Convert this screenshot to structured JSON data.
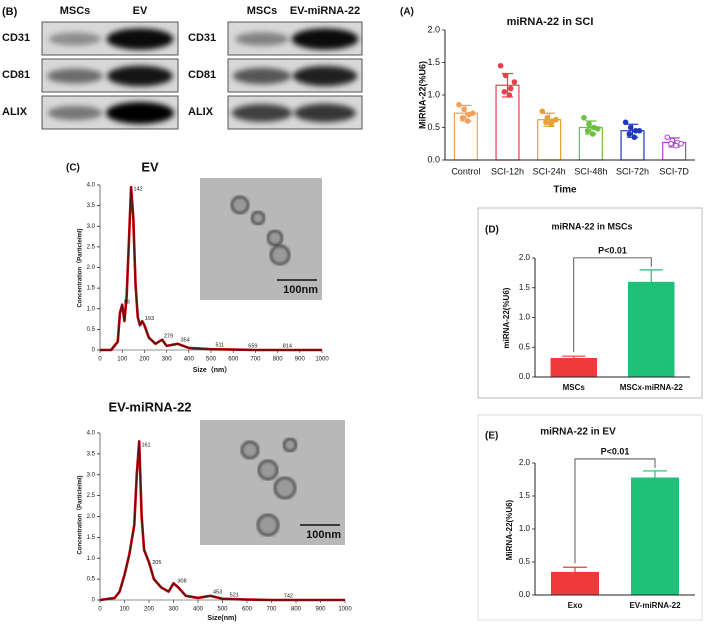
{
  "blots": {
    "panel_label": "(B)",
    "panels": [
      {
        "columns": [
          "MSCs",
          "EV"
        ],
        "rows": [
          "CD31",
          "CD81",
          "ALIX"
        ]
      },
      {
        "columns": [
          "MSCs",
          "EV-miRNA-22"
        ],
        "rows": [
          "CD31",
          "CD81",
          "ALIX"
        ]
      }
    ]
  },
  "tem_images": [
    {
      "scale": "100nm"
    },
    {
      "scale": "100nm"
    }
  ],
  "chart_data": [
    {
      "type": "bar",
      "panel_label": "(A)",
      "title": "miRNA-22 in SCI",
      "x_label": "Time",
      "y_label": "MiRNA-22(%U6)",
      "categories": [
        "Control",
        "SCI-12h",
        "SCI-24h",
        "SCI-48h",
        "SCI-72h",
        "SCI-7D"
      ],
      "values": [
        0.72,
        1.15,
        0.62,
        0.5,
        0.45,
        0.27
      ],
      "errors": [
        0.12,
        0.18,
        0.1,
        0.1,
        0.1,
        0.07
      ],
      "points": [
        [
          0.85,
          0.78,
          0.7,
          0.65,
          0.6,
          0.72
        ],
        [
          1.45,
          1.3,
          1.1,
          1.05,
          1.0,
          1.2
        ],
        [
          0.75,
          0.65,
          0.6,
          0.58,
          0.55,
          0.62
        ],
        [
          0.65,
          0.55,
          0.5,
          0.45,
          0.4,
          0.48
        ],
        [
          0.58,
          0.5,
          0.45,
          0.4,
          0.35,
          0.45
        ],
        [
          0.35,
          0.3,
          0.27,
          0.25,
          0.22,
          0.25
        ]
      ],
      "colors": [
        "#f0a060",
        "#e8404a",
        "#e8a030",
        "#6cc040",
        "#2038c0",
        "#b040d0"
      ],
      "hollow": true,
      "ylim": [
        0,
        2
      ],
      "yticks": [
        {
          "value": 0,
          "label": "0.0"
        },
        0.5,
        {
          "value": 1,
          "label": "1.0"
        },
        1.5,
        {
          "value": 2,
          "label": "2.0"
        }
      ]
    },
    {
      "type": "line",
      "panel_label": "(C)",
      "title": "EV",
      "x_label": "Size（nm）",
      "y_label": "Concentration（Particle/ml)",
      "x": [
        0,
        50,
        80,
        90,
        100,
        110,
        120,
        130,
        140,
        150,
        160,
        170,
        180,
        190,
        200,
        220,
        250,
        280,
        300,
        350,
        400,
        500,
        600,
        700,
        800,
        900,
        1000
      ],
      "series": [
        {
          "color": "#c00000",
          "values": [
            0,
            0,
            0.2,
            0.9,
            1.1,
            0.7,
            1.3,
            2.6,
            3.95,
            3.2,
            1.6,
            0.8,
            0.6,
            0.7,
            0.6,
            0.3,
            0.15,
            0.25,
            0.1,
            0.15,
            0.05,
            0.02,
            0.01,
            0,
            0,
            0,
            0
          ]
        }
      ],
      "peak_labels": [
        98,
        142,
        193,
        279,
        354,
        511,
        659,
        814
      ],
      "xlim": [
        0,
        1000
      ],
      "xticks": [
        0,
        100,
        200,
        300,
        400,
        500,
        600,
        700,
        800,
        900,
        1000
      ],
      "ylim": [
        0,
        4
      ],
      "yticks": [
        0,
        0.5,
        {
          "value": 1,
          "label": "1.0"
        },
        1.5,
        {
          "value": 2,
          "label": "2.0"
        },
        2.5,
        {
          "value": 3,
          "label": "3.0"
        },
        3.5,
        {
          "value": 4,
          "label": "4.0"
        }
      ]
    },
    {
      "type": "line",
      "title": "EV-miRNA-22",
      "x_label": "Size(nm)",
      "y_label": "Concentration（Particle/ml)",
      "x": [
        0,
        60,
        80,
        100,
        120,
        140,
        150,
        160,
        170,
        180,
        200,
        220,
        250,
        280,
        300,
        320,
        350,
        400,
        450,
        500,
        600,
        700,
        800,
        1000
      ],
      "series": [
        {
          "color": "#c00000",
          "values": [
            0,
            0.05,
            0.2,
            0.6,
            1.1,
            1.8,
            3.0,
            3.8,
            2.0,
            1.2,
            0.9,
            0.5,
            0.3,
            0.2,
            0.4,
            0.3,
            0.1,
            0.05,
            0.1,
            0.03,
            0.01,
            0,
            0,
            0
          ]
        }
      ],
      "peak_labels": [
        161,
        205,
        308,
        453,
        521,
        742
      ],
      "xlim": [
        0,
        1000
      ],
      "xticks": [
        0,
        100,
        200,
        300,
        400,
        500,
        600,
        700,
        800,
        900,
        1000
      ],
      "ylim": [
        0,
        4
      ],
      "yticks": [
        0,
        0.5,
        {
          "value": 1,
          "label": "1.0"
        },
        1.5,
        {
          "value": 2,
          "label": "2.0"
        },
        2.5,
        {
          "value": 3,
          "label": "3.0"
        },
        3.5,
        {
          "value": 4,
          "label": "4.0"
        }
      ]
    },
    {
      "type": "bar",
      "panel_label": "(D)",
      "title": "miRNA-22 in MSCs",
      "y_label": "miRNA-22(%U6)",
      "p_label": "P<0.01",
      "categories": [
        "MSCs",
        "MSCx-miRNA-22"
      ],
      "values": [
        0.32,
        1.6
      ],
      "errors": [
        0.03,
        0.2
      ],
      "colors": [
        "#ee3a3a",
        "#1ec07a"
      ],
      "ylim": [
        0,
        2
      ],
      "yticks": [
        {
          "value": 0,
          "label": "0.0"
        },
        0.5,
        {
          "value": 1,
          "label": "1.0"
        },
        1.5,
        {
          "value": 2,
          "label": "2.0"
        }
      ]
    },
    {
      "type": "bar",
      "panel_label": "(E)",
      "title": "miRNA-22 in EV",
      "y_label": "MiRNA-22(%U6)",
      "p_label": "P<0.01",
      "categories": [
        "Exo",
        "EV-miRNA-22"
      ],
      "values": [
        0.35,
        1.78
      ],
      "errors": [
        0.07,
        0.1
      ],
      "colors": [
        "#ee3a3a",
        "#1ec07a"
      ],
      "ylim": [
        0,
        2
      ],
      "yticks": [
        {
          "value": 0,
          "label": "0.0"
        },
        0.5,
        {
          "value": 1,
          "label": "1.0"
        },
        1.5,
        {
          "value": 2,
          "label": "2.0"
        }
      ]
    }
  ]
}
